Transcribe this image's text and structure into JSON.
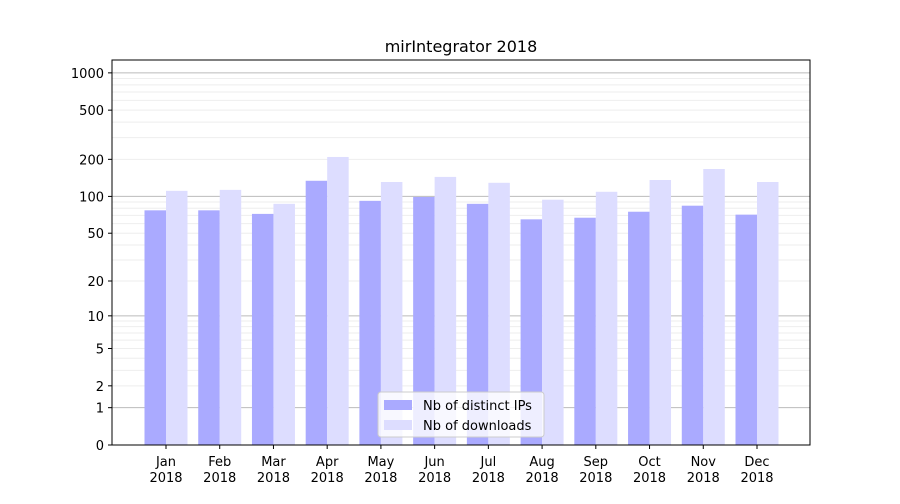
{
  "chart_data": {
    "type": "bar",
    "title": "mirIntegrator 2018",
    "xlabel": "",
    "ylabel": "",
    "yscale": "symlog",
    "ylim": [
      0,
      1270
    ],
    "yticks": [
      0,
      1,
      2,
      5,
      10,
      20,
      50,
      100,
      200,
      500,
      1000
    ],
    "grid": true,
    "legend_position": "bottom-center",
    "categories": [
      "Jan\n2018",
      "Feb\n2018",
      "Mar\n2018",
      "Apr\n2018",
      "May\n2018",
      "Jun\n2018",
      "Jul\n2018",
      "Aug\n2018",
      "Sep\n2018",
      "Oct\n2018",
      "Nov\n2018",
      "Dec\n2018"
    ],
    "series": [
      {
        "name": "Nb of distinct IPs",
        "color": "#aaaaff",
        "values": [
          77,
          77,
          72,
          134,
          92,
          99,
          87,
          65,
          67,
          75,
          84,
          71
        ]
      },
      {
        "name": "Nb of downloads",
        "color": "#ddddff",
        "values": [
          111,
          113,
          87,
          209,
          131,
          144,
          129,
          94,
          109,
          136,
          167,
          131
        ]
      }
    ]
  }
}
